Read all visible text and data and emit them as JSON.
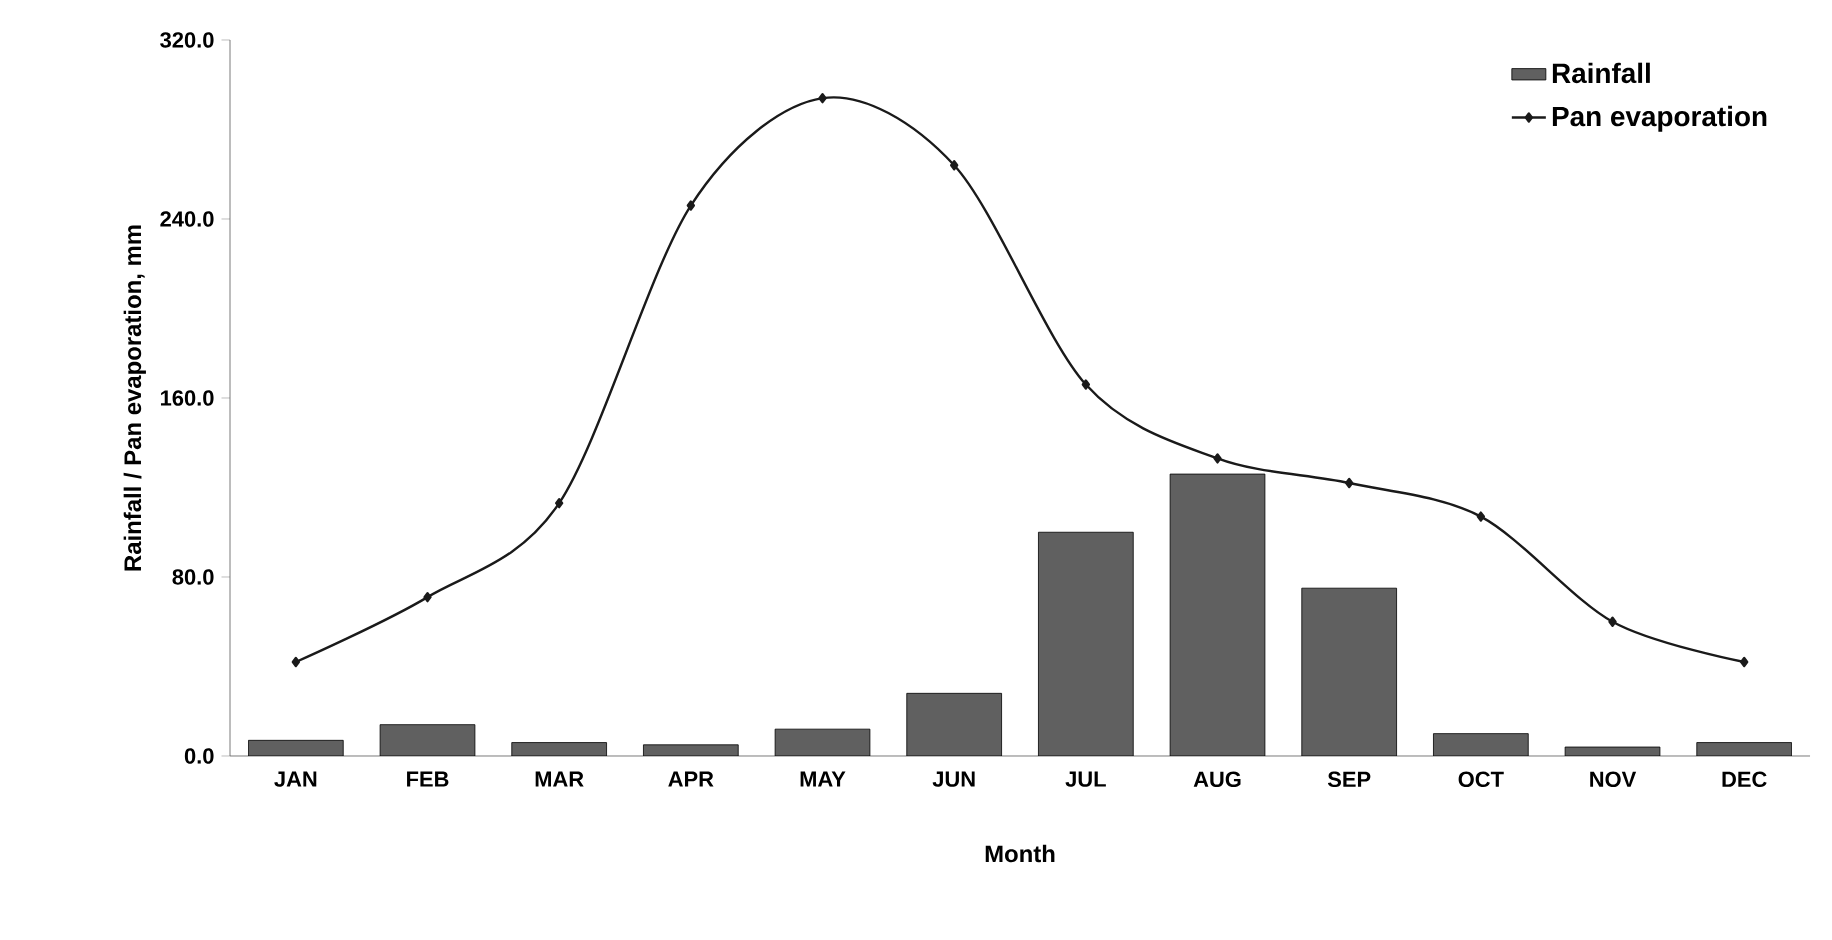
{
  "chart_data": {
    "type": "bar",
    "xlabel": "Month",
    "ylabel": "Rainfall /  Pan evaporation, mm",
    "categories": [
      "JAN",
      "FEB",
      "MAR",
      "APR",
      "MAY",
      "JUN",
      "JUL",
      "AUG",
      "SEP",
      "OCT",
      "NOV",
      "DEC"
    ],
    "series": [
      {
        "name": "Rainfall",
        "color": "#606060",
        "values": [
          7,
          14,
          6,
          5,
          12,
          28,
          100,
          126,
          75,
          10,
          4,
          6
        ]
      },
      {
        "name": "Pan evaporation",
        "type": "line",
        "color": "#1a1a1a",
        "marker": "diamond",
        "values": [
          42,
          71,
          113,
          246,
          294,
          264,
          166,
          133,
          122,
          107,
          60,
          42
        ]
      }
    ],
    "ylim": [
      0,
      320
    ],
    "yticks": [
      {
        "value": 0,
        "label": "0.0"
      },
      {
        "value": 80,
        "label": "80.0"
      },
      {
        "value": 160,
        "label": "160.0"
      },
      {
        "value": 240,
        "label": "240.0"
      },
      {
        "value": 320,
        "label": "320.0"
      }
    ],
    "grid": false,
    "legend": "top right"
  }
}
